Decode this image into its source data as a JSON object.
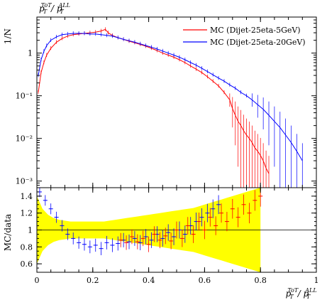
{
  "chart_data": [
    {
      "type": "line",
      "panel": "main",
      "title": "p_T^{ToT} / p_T^{ALL}",
      "ylabel": "1/N",
      "yscale": "log",
      "ylim": [
        0.0007,
        7
      ],
      "xlim": [
        0,
        1
      ],
      "yticks": [
        {
          "value": 0.001,
          "label": "10⁻³"
        },
        {
          "value": 0.01,
          "label": "10⁻²"
        },
        {
          "value": 0.1,
          "label": "10⁻¹"
        },
        {
          "value": 1,
          "label": "1"
        }
      ],
      "legend_position": "top-right",
      "series": [
        {
          "name": "MC (Dijet-25eta-5GeV)",
          "color": "#ff0000",
          "x": [
            0.005,
            0.015,
            0.025,
            0.035,
            0.05,
            0.07,
            0.09,
            0.11,
            0.13,
            0.15,
            0.17,
            0.19,
            0.21,
            0.23,
            0.245,
            0.255,
            0.27,
            0.29,
            0.31,
            0.33,
            0.35,
            0.37,
            0.39,
            0.41,
            0.43,
            0.45,
            0.47,
            0.49,
            0.51,
            0.53,
            0.55,
            0.57,
            0.59,
            0.61,
            0.63,
            0.65,
            0.67,
            0.69,
            0.7,
            0.71,
            0.72,
            0.73,
            0.74,
            0.75,
            0.76,
            0.77,
            0.78,
            0.79,
            0.8,
            0.81,
            0.82,
            0.83
          ],
          "y": [
            0.12,
            0.35,
            0.6,
            0.9,
            1.3,
            1.8,
            2.2,
            2.5,
            2.7,
            2.8,
            2.9,
            3.0,
            3.1,
            3.3,
            3.6,
            3.0,
            2.6,
            2.3,
            2.1,
            1.9,
            1.75,
            1.6,
            1.45,
            1.3,
            1.15,
            1.0,
            0.9,
            0.8,
            0.7,
            0.6,
            0.5,
            0.42,
            0.35,
            0.28,
            0.22,
            0.17,
            0.12,
            0.08,
            0.05,
            0.035,
            0.025,
            0.02,
            0.015,
            0.012,
            0.01,
            0.008,
            0.006,
            0.005,
            0.004,
            0.003,
            0.002,
            0.0015
          ]
        },
        {
          "name": "MC (Dijet-25eta-20GeV)",
          "color": "#0000ff",
          "x": [
            0.005,
            0.015,
            0.025,
            0.035,
            0.05,
            0.07,
            0.09,
            0.11,
            0.13,
            0.15,
            0.17,
            0.19,
            0.21,
            0.23,
            0.25,
            0.27,
            0.29,
            0.31,
            0.33,
            0.35,
            0.37,
            0.39,
            0.41,
            0.43,
            0.45,
            0.47,
            0.49,
            0.51,
            0.53,
            0.55,
            0.57,
            0.59,
            0.61,
            0.63,
            0.65,
            0.67,
            0.69,
            0.71,
            0.73,
            0.75,
            0.77,
            0.79,
            0.81,
            0.83,
            0.85,
            0.87,
            0.89,
            0.91,
            0.93,
            0.95
          ],
          "y": [
            0.3,
            0.7,
            1.1,
            1.5,
            2.0,
            2.4,
            2.7,
            2.8,
            2.9,
            2.9,
            2.9,
            2.8,
            2.8,
            2.7,
            2.6,
            2.5,
            2.3,
            2.1,
            1.95,
            1.8,
            1.65,
            1.5,
            1.38,
            1.25,
            1.12,
            1.0,
            0.9,
            0.8,
            0.7,
            0.6,
            0.52,
            0.44,
            0.37,
            0.31,
            0.26,
            0.22,
            0.18,
            0.15,
            0.12,
            0.1,
            0.08,
            0.062,
            0.048,
            0.035,
            0.025,
            0.018,
            0.012,
            0.008,
            0.005,
            0.003
          ]
        }
      ]
    },
    {
      "type": "line",
      "panel": "ratio",
      "ylabel": "MC/data",
      "xlabel": "p_T^{ToT} / p_T^{ALL}",
      "xlim": [
        0,
        1
      ],
      "ylim": [
        0.5,
        1.5
      ],
      "xticks": [
        0,
        0.2,
        0.4,
        0.6,
        0.8,
        1
      ],
      "yticks": [
        0.6,
        0.8,
        1,
        1.2,
        1.4
      ],
      "band": {
        "color": "#ffff00",
        "x": [
          0.0,
          0.02,
          0.04,
          0.06,
          0.08,
          0.1,
          0.12,
          0.14,
          0.16,
          0.18,
          0.2,
          0.22,
          0.24,
          0.26,
          0.28,
          0.3,
          0.32,
          0.34,
          0.36,
          0.38,
          0.4,
          0.42,
          0.44,
          0.46,
          0.48,
          0.5,
          0.52,
          0.54,
          0.56,
          0.58,
          0.6,
          0.62,
          0.64,
          0.66,
          0.68,
          0.7,
          0.72,
          0.74,
          0.76,
          0.78,
          0.8
        ],
        "lo": [
          0.6,
          0.75,
          0.82,
          0.86,
          0.88,
          0.89,
          0.9,
          0.9,
          0.9,
          0.9,
          0.9,
          0.9,
          0.9,
          0.89,
          0.88,
          0.87,
          0.86,
          0.85,
          0.84,
          0.83,
          0.82,
          0.81,
          0.8,
          0.79,
          0.78,
          0.77,
          0.76,
          0.75,
          0.74,
          0.72,
          0.7,
          0.68,
          0.66,
          0.64,
          0.62,
          0.6,
          0.58,
          0.56,
          0.54,
          0.52,
          0.5
        ],
        "hi": [
          1.4,
          1.25,
          1.18,
          1.14,
          1.12,
          1.11,
          1.1,
          1.1,
          1.1,
          1.1,
          1.1,
          1.1,
          1.1,
          1.11,
          1.12,
          1.13,
          1.14,
          1.15,
          1.16,
          1.17,
          1.18,
          1.19,
          1.2,
          1.21,
          1.22,
          1.23,
          1.24,
          1.25,
          1.26,
          1.28,
          1.3,
          1.32,
          1.34,
          1.36,
          1.38,
          1.4,
          1.42,
          1.44,
          1.46,
          1.48,
          1.5
        ]
      },
      "series": [
        {
          "name": "MC (Dijet-25eta-20GeV)",
          "color": "#0000ff",
          "x": [
            0.01,
            0.03,
            0.05,
            0.07,
            0.09,
            0.11,
            0.13,
            0.15,
            0.17,
            0.19,
            0.21,
            0.23,
            0.25,
            0.27,
            0.29,
            0.31,
            0.33,
            0.35,
            0.37,
            0.39,
            0.41,
            0.43,
            0.45,
            0.47,
            0.49,
            0.51,
            0.53,
            0.55,
            0.57,
            0.59,
            0.61,
            0.63,
            0.65
          ],
          "y": [
            1.45,
            1.35,
            1.25,
            1.15,
            1.05,
            0.95,
            0.9,
            0.85,
            0.83,
            0.8,
            0.82,
            0.78,
            0.85,
            0.82,
            0.84,
            0.88,
            0.86,
            0.9,
            0.85,
            0.92,
            0.88,
            0.95,
            0.9,
            0.97,
            0.92,
            1.0,
            0.95,
            1.05,
            1.1,
            1.15,
            1.2,
            1.25,
            1.3
          ]
        },
        {
          "name": "MC (Dijet-25eta-5GeV)",
          "color": "#ff0000",
          "x": [
            0.3,
            0.32,
            0.34,
            0.36,
            0.38,
            0.4,
            0.42,
            0.44,
            0.46,
            0.48,
            0.5,
            0.52,
            0.54,
            0.56,
            0.58,
            0.6,
            0.62,
            0.64,
            0.66,
            0.68,
            0.7,
            0.72,
            0.74,
            0.76,
            0.78,
            0.8
          ],
          "y": [
            0.88,
            0.85,
            0.92,
            0.86,
            0.9,
            0.83,
            0.95,
            0.88,
            0.93,
            0.87,
            1.0,
            0.9,
            1.05,
            0.95,
            1.1,
            1.0,
            1.15,
            1.05,
            1.2,
            1.1,
            1.25,
            1.15,
            1.3,
            1.2,
            1.35,
            1.4
          ]
        }
      ]
    }
  ]
}
